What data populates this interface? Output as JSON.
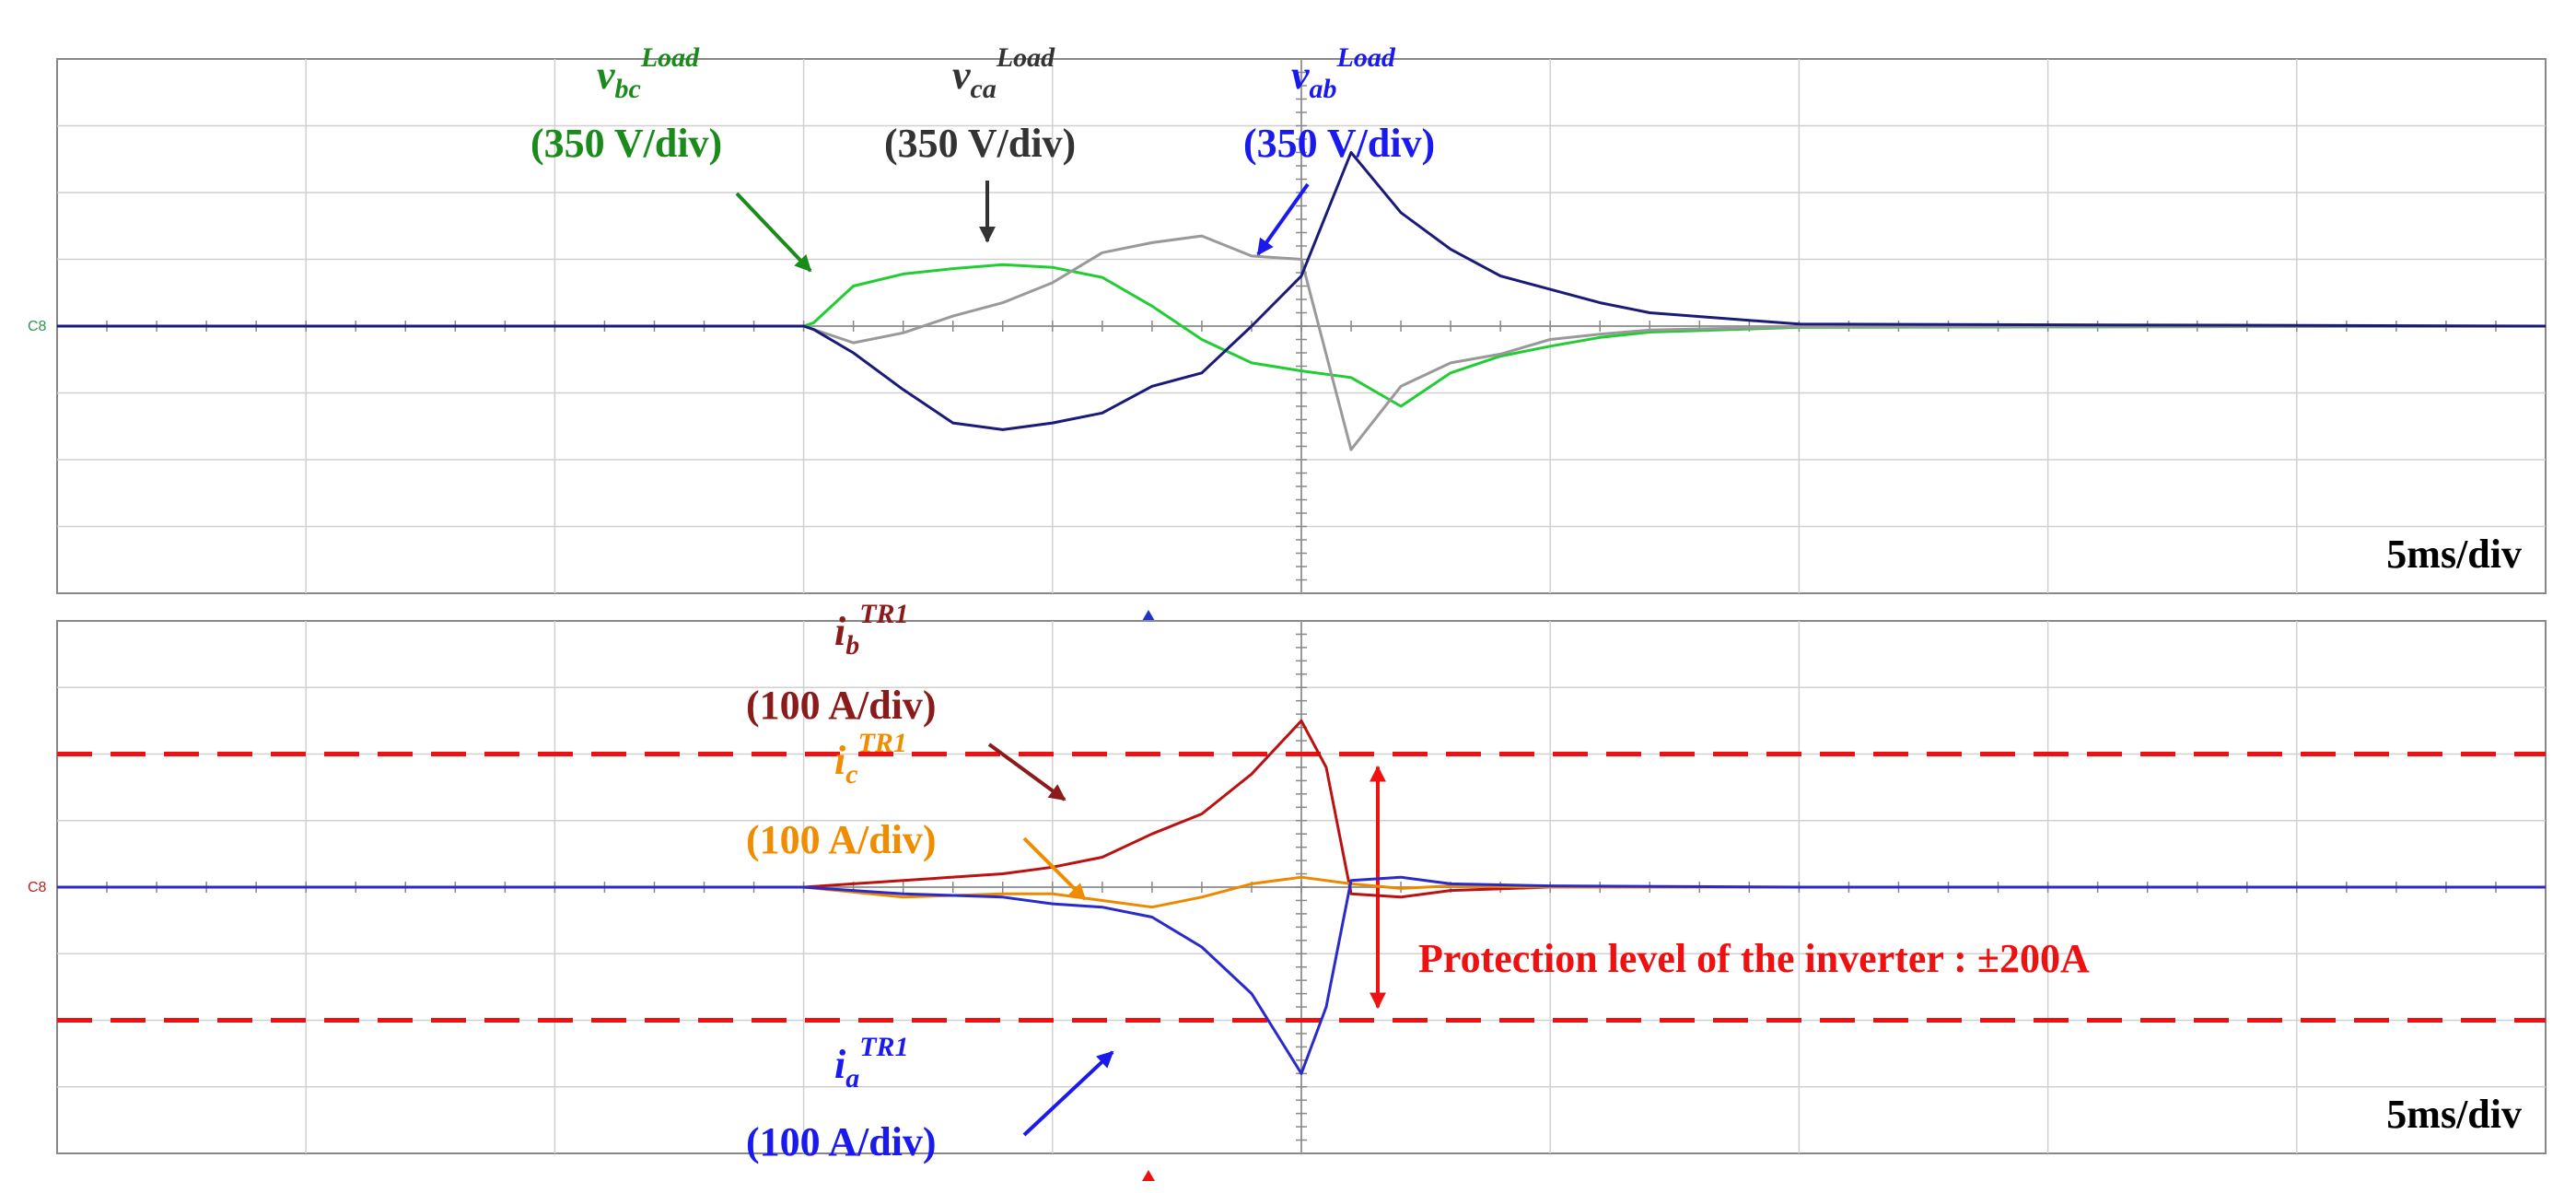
{
  "chart_data": [
    {
      "type": "line",
      "title": "",
      "x_unit": "ms",
      "xlim": [
        0,
        50
      ],
      "x_per_div": 5,
      "y_per_div": 350,
      "ylim_div": [
        -4,
        4
      ],
      "y_unit": "V",
      "grid": true,
      "timebase_label": "5ms/div",
      "channel_marker": "C8",
      "series": [
        {
          "name_main": "v",
          "name_sub": "bc",
          "name_sup": "Load",
          "scale_label": "(350 V/div)",
          "color": "#22cc33",
          "label_color": "#1a8a1a",
          "x": [
            0,
            15,
            15.2,
            16,
            17,
            18,
            19,
            20,
            21,
            22,
            23,
            24,
            25,
            26,
            27,
            28,
            29,
            30,
            31,
            32,
            35,
            50
          ],
          "y": [
            0,
            0,
            0.05,
            0.6,
            0.78,
            0.86,
            0.92,
            0.88,
            0.73,
            0.3,
            -0.2,
            -0.55,
            -0.67,
            -0.77,
            -1.2,
            -0.7,
            -0.45,
            -0.3,
            -0.17,
            -0.09,
            -0.02,
            0
          ]
        },
        {
          "name_main": "v",
          "name_sub": "ca",
          "name_sup": "Load",
          "scale_label": "(350 V/div)",
          "color": "#999999",
          "label_color": "#333333",
          "x": [
            0,
            15,
            15.2,
            16,
            17,
            18,
            19,
            20,
            21,
            22,
            23,
            24,
            25,
            26,
            27,
            28,
            29,
            30,
            31,
            32,
            35,
            50
          ],
          "y": [
            0,
            0,
            -0.05,
            -0.25,
            -0.1,
            0.15,
            0.35,
            0.65,
            1.1,
            1.25,
            1.35,
            1.05,
            1.0,
            -1.85,
            -0.9,
            -0.55,
            -0.42,
            -0.2,
            -0.12,
            -0.06,
            -0.01,
            0
          ]
        },
        {
          "name_main": "v",
          "name_sub": "ab",
          "name_sup": "Load",
          "scale_label": "(350 V/div)",
          "color": "#1a1a7a",
          "label_color": "#1a1aee",
          "x": [
            0,
            15,
            15.2,
            16,
            17,
            18,
            19,
            20,
            21,
            22,
            23,
            24,
            25,
            26,
            27,
            28,
            29,
            30,
            31,
            32,
            35,
            50
          ],
          "y": [
            0,
            0,
            -0.05,
            -0.4,
            -0.95,
            -1.45,
            -1.55,
            -1.45,
            -1.3,
            -0.9,
            -0.7,
            0.0,
            0.75,
            2.6,
            1.7,
            1.15,
            0.75,
            0.55,
            0.35,
            0.2,
            0.03,
            0
          ]
        }
      ]
    },
    {
      "type": "line",
      "title": "",
      "x_unit": "ms",
      "xlim": [
        0,
        50
      ],
      "x_per_div": 5,
      "y_per_div": 100,
      "ylim_div": [
        -4,
        4
      ],
      "y_unit": "A",
      "grid": true,
      "timebase_label": "5ms/div",
      "channel_marker": "C8",
      "protection_level_div": 2,
      "protection_label": "Protection level of the inverter : ±200A",
      "series": [
        {
          "name_main": "i",
          "name_sub": "b",
          "name_sup": "TR1",
          "scale_label": "(100 A/div)",
          "color": "#bb1111",
          "label_color": "#8b1a1a",
          "x": [
            0,
            15,
            17,
            19,
            20,
            21,
            22,
            23,
            24,
            25,
            25.5,
            26,
            27,
            28,
            30,
            35,
            50
          ],
          "y": [
            0,
            0,
            0.1,
            0.2,
            0.3,
            0.45,
            0.8,
            1.1,
            1.7,
            2.5,
            1.8,
            -0.1,
            -0.15,
            -0.05,
            0,
            0,
            0
          ]
        },
        {
          "name_main": "i",
          "name_sub": "c",
          "name_sup": "TR1",
          "scale_label": "(100 A/div)",
          "color": "#ee8800",
          "label_color": "#f08c00",
          "x": [
            0,
            15,
            17,
            19,
            20,
            21,
            22,
            23,
            24,
            25,
            26,
            27,
            28,
            30,
            35,
            50
          ],
          "y": [
            0,
            0,
            -0.15,
            -0.1,
            -0.1,
            -0.2,
            -0.3,
            -0.15,
            0.05,
            0.15,
            0.05,
            -0.02,
            0.02,
            0,
            0,
            0
          ]
        },
        {
          "name_main": "i",
          "name_sub": "a",
          "name_sup": "TR1",
          "scale_label": "(100 A/div)",
          "color": "#2a2acc",
          "label_color": "#1a1aee",
          "x": [
            0,
            15,
            17,
            19,
            20,
            21,
            22,
            23,
            24,
            25,
            25.5,
            26,
            27,
            28,
            30,
            35,
            50
          ],
          "y": [
            0,
            0,
            -0.1,
            -0.15,
            -0.25,
            -0.3,
            -0.45,
            -0.9,
            -1.6,
            -2.8,
            -1.8,
            0.1,
            0.15,
            0.05,
            0.02,
            0,
            0
          ]
        }
      ]
    }
  ]
}
